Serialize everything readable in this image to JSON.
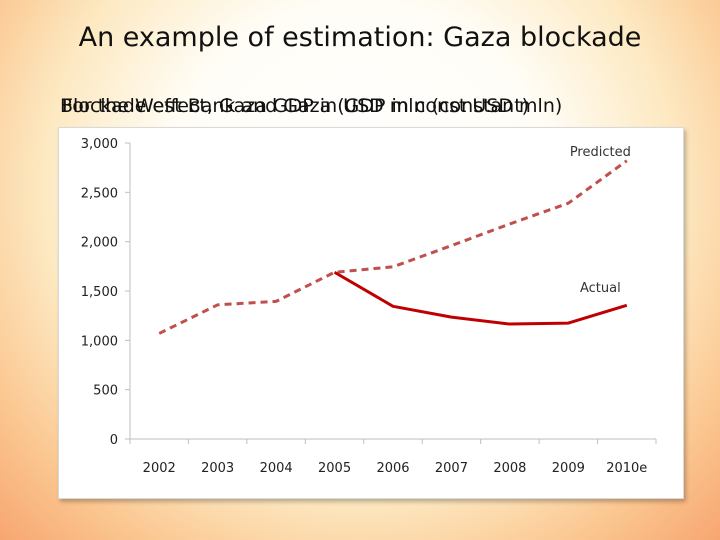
{
  "slide": {
    "title": "An example of estimation: Gaza blockade",
    "subtitle_a": "Blockade effect, Gaza GDP in USD mln (constant)",
    "subtitle_b": "For the West Bank and Gaza (GDP in const USD mln)"
  },
  "chart_data": {
    "type": "line",
    "title": "",
    "xlabel": "",
    "ylabel": "",
    "categories": [
      "2002",
      "2003",
      "2004",
      "2005",
      "2006",
      "2007",
      "2008",
      "2009",
      "2010e"
    ],
    "ylim": [
      0,
      3000
    ],
    "yticks": [
      0,
      500,
      1000,
      1500,
      2000,
      2500,
      3000
    ],
    "ytick_labels": [
      "0",
      "500",
      "1,000",
      "1,500",
      "2,000",
      "2,500",
      "3,000"
    ],
    "grid": false,
    "series": [
      {
        "name": "Actual",
        "style": "solid",
        "color": "#c00000",
        "values": [
          1070,
          1360,
          1395,
          1690,
          1345,
          1235,
          1165,
          1175,
          1355
        ]
      },
      {
        "name": "Predicted",
        "style": "dashed",
        "color": "#c0504d",
        "values": [
          1070,
          1360,
          1395,
          1690,
          1745,
          1960,
          2180,
          2390,
          2820
        ]
      }
    ]
  }
}
